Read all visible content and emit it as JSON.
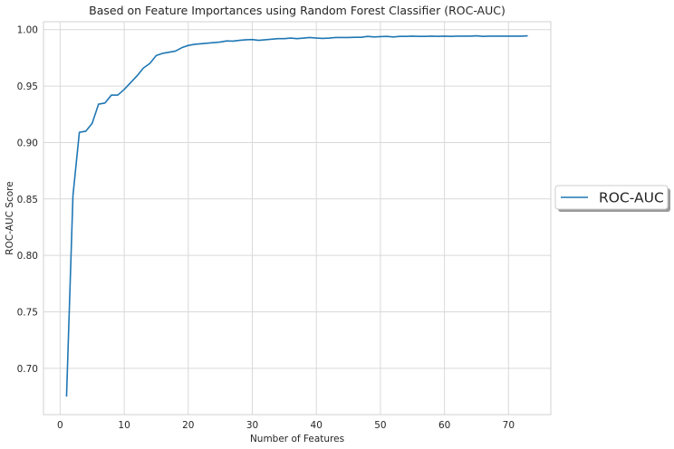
{
  "chart_data": {
    "type": "line",
    "title": "Based on Feature Importances using Random Forest Classifier (ROC-AUC)",
    "xlabel": "Number of Features",
    "ylabel": "ROC-AUC Score",
    "xlim": [
      -2.6,
      76.6
    ],
    "ylim": [
      0.659,
      1.007
    ],
    "xticks": [
      0,
      10,
      20,
      30,
      40,
      50,
      60,
      70
    ],
    "yticks": [
      0.7,
      0.75,
      0.8,
      0.85,
      0.9,
      0.95,
      1.0
    ],
    "ytick_labels": [
      "0.70",
      "0.75",
      "0.80",
      "0.85",
      "0.90",
      "0.95",
      "1.00"
    ],
    "grid": true,
    "legend_position": "right",
    "series": [
      {
        "name": "ROC-AUC",
        "color": "#1f77b4",
        "x": [
          1,
          2,
          3,
          4,
          5,
          6,
          7,
          8,
          9,
          10,
          11,
          12,
          13,
          14,
          15,
          16,
          17,
          18,
          19,
          20,
          21,
          22,
          23,
          24,
          25,
          26,
          27,
          28,
          29,
          30,
          31,
          32,
          33,
          34,
          35,
          36,
          37,
          38,
          39,
          40,
          41,
          42,
          43,
          44,
          45,
          46,
          47,
          48,
          49,
          50,
          51,
          52,
          53,
          54,
          55,
          56,
          57,
          58,
          59,
          60,
          61,
          62,
          63,
          64,
          65,
          66,
          67,
          68,
          69,
          70,
          71,
          72,
          73
        ],
        "values": [
          0.675,
          0.853,
          0.909,
          0.91,
          0.917,
          0.934,
          0.935,
          0.942,
          0.942,
          0.947,
          0.953,
          0.959,
          0.966,
          0.97,
          0.977,
          0.979,
          0.98,
          0.981,
          0.984,
          0.986,
          0.987,
          0.9875,
          0.988,
          0.9885,
          0.989,
          0.99,
          0.9898,
          0.9905,
          0.991,
          0.9912,
          0.9905,
          0.991,
          0.9915,
          0.992,
          0.992,
          0.9925,
          0.992,
          0.9925,
          0.993,
          0.9925,
          0.9922,
          0.9925,
          0.993,
          0.993,
          0.993,
          0.9932,
          0.9932,
          0.994,
          0.9935,
          0.9938,
          0.994,
          0.9935,
          0.994,
          0.994,
          0.9942,
          0.994,
          0.994,
          0.9942,
          0.994,
          0.9942,
          0.994,
          0.9942,
          0.9942,
          0.9942,
          0.9945,
          0.994,
          0.9942,
          0.9942,
          0.9942,
          0.9942,
          0.9942,
          0.9942,
          0.9945
        ]
      }
    ]
  }
}
